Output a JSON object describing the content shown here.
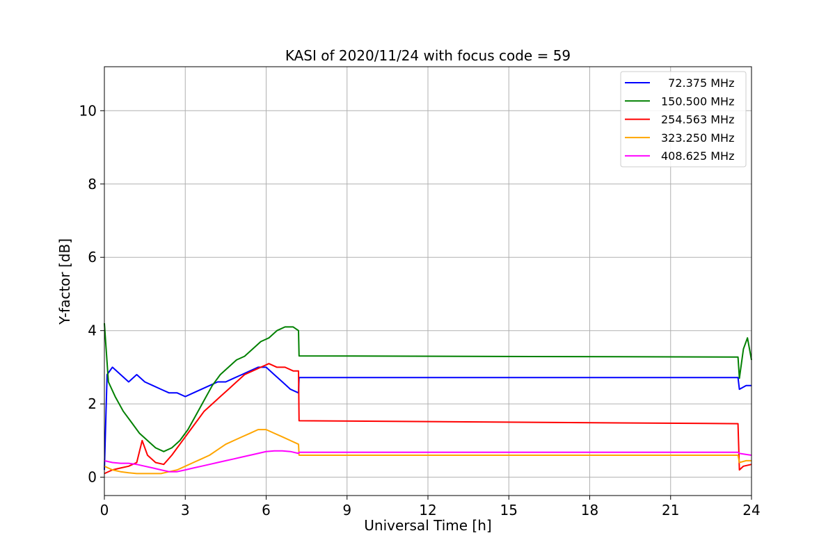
{
  "chart_data": {
    "type": "line",
    "title": "KASI of 2020/11/24 with focus code = 59",
    "xlabel": "Universal Time [h]",
    "ylabel": "Y-factor [dB]",
    "xlim": [
      0,
      24
    ],
    "ylim": [
      -0.5,
      11.2
    ],
    "xticks": [
      0,
      3,
      6,
      9,
      12,
      15,
      18,
      21,
      24
    ],
    "yticks": [
      0,
      2,
      4,
      6,
      8,
      10
    ],
    "grid": true,
    "legend_position": "top-right",
    "series": [
      {
        "name": "  72.375 MHz",
        "color": "#0000ff",
        "points": [
          [
            0.0,
            0.2
          ],
          [
            0.1,
            2.8
          ],
          [
            0.3,
            3.0
          ],
          [
            0.6,
            2.8
          ],
          [
            0.9,
            2.6
          ],
          [
            1.2,
            2.8
          ],
          [
            1.5,
            2.6
          ],
          [
            1.8,
            2.5
          ],
          [
            2.1,
            2.4
          ],
          [
            2.4,
            2.3
          ],
          [
            2.7,
            2.3
          ],
          [
            3.0,
            2.2
          ],
          [
            3.3,
            2.3
          ],
          [
            3.6,
            2.4
          ],
          [
            3.9,
            2.5
          ],
          [
            4.2,
            2.6
          ],
          [
            4.5,
            2.6
          ],
          [
            4.8,
            2.7
          ],
          [
            5.1,
            2.8
          ],
          [
            5.4,
            2.9
          ],
          [
            5.7,
            3.0
          ],
          [
            6.0,
            3.0
          ],
          [
            6.3,
            2.8
          ],
          [
            6.6,
            2.6
          ],
          [
            6.9,
            2.4
          ],
          [
            7.2,
            2.3
          ],
          [
            7.22,
            2.72
          ],
          [
            23.5,
            2.72
          ],
          [
            23.55,
            2.4
          ],
          [
            23.8,
            2.5
          ],
          [
            24.0,
            2.5
          ]
        ]
      },
      {
        "name": "150.500 MHz",
        "color": "#008000",
        "points": [
          [
            0.0,
            4.2
          ],
          [
            0.15,
            2.6
          ],
          [
            0.4,
            2.2
          ],
          [
            0.7,
            1.8
          ],
          [
            1.0,
            1.5
          ],
          [
            1.3,
            1.2
          ],
          [
            1.6,
            1.0
          ],
          [
            1.9,
            0.8
          ],
          [
            2.2,
            0.7
          ],
          [
            2.5,
            0.8
          ],
          [
            2.8,
            1.0
          ],
          [
            3.1,
            1.3
          ],
          [
            3.4,
            1.7
          ],
          [
            3.7,
            2.1
          ],
          [
            4.0,
            2.5
          ],
          [
            4.3,
            2.8
          ],
          [
            4.6,
            3.0
          ],
          [
            4.9,
            3.2
          ],
          [
            5.2,
            3.3
          ],
          [
            5.5,
            3.5
          ],
          [
            5.8,
            3.7
          ],
          [
            6.1,
            3.8
          ],
          [
            6.4,
            4.0
          ],
          [
            6.7,
            4.1
          ],
          [
            7.0,
            4.1
          ],
          [
            7.2,
            4.0
          ],
          [
            7.22,
            3.31
          ],
          [
            23.5,
            3.28
          ],
          [
            23.55,
            2.7
          ],
          [
            23.7,
            3.5
          ],
          [
            23.85,
            3.8
          ],
          [
            24.0,
            3.2
          ]
        ]
      },
      {
        "name": "254.563 MHz",
        "color": "#ff0000",
        "points": [
          [
            0.0,
            0.1
          ],
          [
            0.3,
            0.2
          ],
          [
            0.6,
            0.25
          ],
          [
            0.9,
            0.3
          ],
          [
            1.2,
            0.4
          ],
          [
            1.4,
            1.0
          ],
          [
            1.6,
            0.6
          ],
          [
            1.9,
            0.4
          ],
          [
            2.2,
            0.35
          ],
          [
            2.5,
            0.6
          ],
          [
            2.8,
            0.9
          ],
          [
            3.1,
            1.2
          ],
          [
            3.4,
            1.5
          ],
          [
            3.7,
            1.8
          ],
          [
            4.0,
            2.0
          ],
          [
            4.3,
            2.2
          ],
          [
            4.6,
            2.4
          ],
          [
            4.9,
            2.6
          ],
          [
            5.2,
            2.8
          ],
          [
            5.5,
            2.9
          ],
          [
            5.8,
            3.0
          ],
          [
            6.1,
            3.1
          ],
          [
            6.4,
            3.0
          ],
          [
            6.7,
            3.0
          ],
          [
            7.0,
            2.9
          ],
          [
            7.2,
            2.9
          ],
          [
            7.22,
            1.54
          ],
          [
            23.5,
            1.46
          ],
          [
            23.55,
            0.2
          ],
          [
            23.7,
            0.3
          ],
          [
            24.0,
            0.35
          ]
        ]
      },
      {
        "name": "323.250 MHz",
        "color": "#ffa500",
        "points": [
          [
            0.0,
            0.3
          ],
          [
            0.3,
            0.2
          ],
          [
            0.6,
            0.15
          ],
          [
            0.9,
            0.12
          ],
          [
            1.2,
            0.1
          ],
          [
            1.5,
            0.1
          ],
          [
            1.8,
            0.1
          ],
          [
            2.1,
            0.1
          ],
          [
            2.4,
            0.15
          ],
          [
            2.7,
            0.2
          ],
          [
            3.0,
            0.3
          ],
          [
            3.3,
            0.4
          ],
          [
            3.6,
            0.5
          ],
          [
            3.9,
            0.6
          ],
          [
            4.2,
            0.75
          ],
          [
            4.5,
            0.9
          ],
          [
            4.8,
            1.0
          ],
          [
            5.1,
            1.1
          ],
          [
            5.4,
            1.2
          ],
          [
            5.7,
            1.3
          ],
          [
            6.0,
            1.3
          ],
          [
            6.3,
            1.2
          ],
          [
            6.6,
            1.1
          ],
          [
            6.9,
            1.0
          ],
          [
            7.2,
            0.9
          ],
          [
            7.22,
            0.6
          ],
          [
            23.5,
            0.6
          ],
          [
            23.55,
            0.4
          ],
          [
            23.8,
            0.45
          ],
          [
            24.0,
            0.45
          ]
        ]
      },
      {
        "name": "408.625 MHz",
        "color": "#ff00ff",
        "points": [
          [
            0.0,
            0.45
          ],
          [
            0.3,
            0.4
          ],
          [
            0.6,
            0.38
          ],
          [
            0.9,
            0.38
          ],
          [
            1.2,
            0.35
          ],
          [
            1.5,
            0.3
          ],
          [
            1.8,
            0.25
          ],
          [
            2.1,
            0.2
          ],
          [
            2.4,
            0.15
          ],
          [
            2.7,
            0.15
          ],
          [
            3.0,
            0.2
          ],
          [
            3.3,
            0.25
          ],
          [
            3.6,
            0.3
          ],
          [
            3.9,
            0.35
          ],
          [
            4.2,
            0.4
          ],
          [
            4.5,
            0.45
          ],
          [
            4.8,
            0.5
          ],
          [
            5.1,
            0.55
          ],
          [
            5.4,
            0.6
          ],
          [
            5.7,
            0.65
          ],
          [
            6.0,
            0.7
          ],
          [
            6.3,
            0.72
          ],
          [
            6.6,
            0.72
          ],
          [
            6.9,
            0.7
          ],
          [
            7.2,
            0.65
          ],
          [
            7.22,
            0.68
          ],
          [
            23.5,
            0.68
          ],
          [
            23.55,
            0.65
          ],
          [
            23.8,
            0.62
          ],
          [
            24.0,
            0.6
          ]
        ]
      }
    ]
  }
}
